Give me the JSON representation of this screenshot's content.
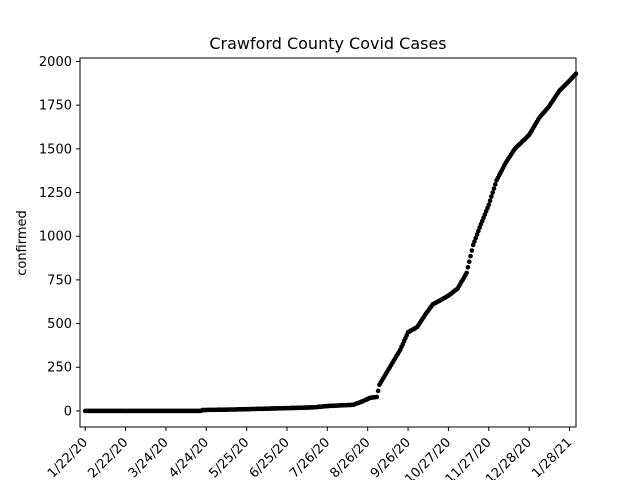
{
  "chart_data": {
    "type": "scatter",
    "title": "Crawford County Covid Cases",
    "xlabel": "",
    "ylabel": "confirmed",
    "x_tick_labels": [
      "1/22/20",
      "2/22/20",
      "3/24/20",
      "4/24/20",
      "5/25/20",
      "6/25/20",
      "7/26/20",
      "8/26/20",
      "9/26/20",
      "10/27/20",
      "11/27/20",
      "12/28/20",
      "1/28/21"
    ],
    "y_ticks": [
      0,
      250,
      500,
      750,
      1000,
      1250,
      1500,
      1750,
      2000
    ],
    "ylim": [
      -92,
      2020
    ],
    "xlim": [
      "1/18/20",
      "2/2/21"
    ],
    "grid": false,
    "marker_color": "#000000",
    "keypoints": [
      [
        "1/22/20",
        0
      ],
      [
        "3/15/20",
        0
      ],
      [
        "4/20/20",
        0
      ],
      [
        "4/21/20",
        5
      ],
      [
        "5/15/20",
        8
      ],
      [
        "6/20/20",
        15
      ],
      [
        "7/15/20",
        20
      ],
      [
        "7/26/20",
        28
      ],
      [
        "8/15/20",
        35
      ],
      [
        "8/22/20",
        55
      ],
      [
        "8/28/20",
        75
      ],
      [
        "9/2/20",
        80
      ],
      [
        "9/4/20",
        150
      ],
      [
        "9/12/20",
        250
      ],
      [
        "9/20/20",
        350
      ],
      [
        "9/26/20",
        450
      ],
      [
        "10/3/20",
        480
      ],
      [
        "10/10/20",
        560
      ],
      [
        "10/15/20",
        610
      ],
      [
        "10/20/20",
        630
      ],
      [
        "10/27/20",
        660
      ],
      [
        "11/3/20",
        700
      ],
      [
        "11/10/20",
        790
      ],
      [
        "11/15/20",
        950
      ],
      [
        "11/20/20",
        1050
      ],
      [
        "11/27/20",
        1180
      ],
      [
        "12/3/20",
        1320
      ],
      [
        "12/10/20",
        1420
      ],
      [
        "12/17/20",
        1500
      ],
      [
        "12/28/20",
        1580
      ],
      [
        "1/5/21",
        1680
      ],
      [
        "1/12/21",
        1740
      ],
      [
        "1/20/21",
        1830
      ],
      [
        "1/28/21",
        1890
      ],
      [
        "2/2/21",
        1930
      ]
    ]
  }
}
